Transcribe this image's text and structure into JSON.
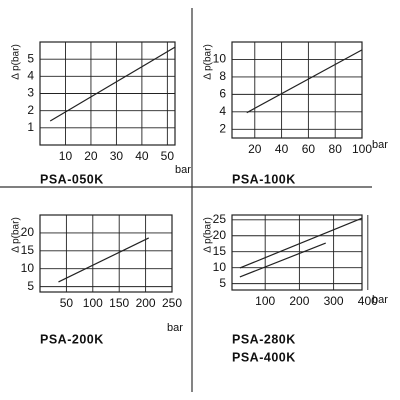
{
  "chart_data": [
    {
      "type": "line",
      "titles": [
        "PSA-050K"
      ],
      "ylabel": "Δ p(bar)",
      "xlabel": "bar",
      "xlim": [
        0,
        53
      ],
      "xticks": [
        10,
        20,
        30,
        40,
        50
      ],
      "ylim": [
        0,
        6
      ],
      "yticks": [
        1,
        2,
        3,
        4,
        5
      ],
      "grid": true,
      "series": [
        {
          "color": "#222222",
          "x": [
            4,
            53
          ],
          "values": [
            1.4,
            5.7
          ]
        }
      ]
    },
    {
      "type": "line",
      "titles": [
        "PSA-100K"
      ],
      "ylabel": "Δ p(bar)",
      "xlabel": "bar",
      "xlim": [
        3,
        100
      ],
      "xticks": [
        20,
        40,
        60,
        80,
        100
      ],
      "ylim": [
        1,
        12
      ],
      "yticks": [
        2,
        4,
        6,
        8,
        10
      ],
      "grid": true,
      "series": [
        {
          "color": "#222222",
          "x": [
            14,
            100
          ],
          "values": [
            3.9,
            11.1
          ]
        }
      ]
    },
    {
      "type": "line",
      "titles": [
        "PSA-200K"
      ],
      "ylabel": "Δ p(bar)",
      "xlabel": "bar",
      "xlim": [
        0,
        250
      ],
      "xticks": [
        50,
        100,
        150,
        200,
        250
      ],
      "ylim": [
        3.5,
        25
      ],
      "yticks": [
        5,
        10,
        15,
        20
      ],
      "grid": true,
      "series": [
        {
          "color": "#222222",
          "x": [
            35,
            206
          ],
          "values": [
            6.3,
            18.6
          ]
        }
      ]
    },
    {
      "type": "line",
      "titles": [
        "PSA-280K",
        "PSA-400K"
      ],
      "ylabel": "Δ p(bar)",
      "xlabel": "bar",
      "xlim": [
        3,
        383
      ],
      "xticks": [
        100,
        200,
        300,
        400
      ],
      "ylim": [
        3,
        26.5
      ],
      "yticks": [
        5,
        10,
        15,
        20,
        25
      ],
      "grid": true,
      "series": [
        {
          "color": "#222222",
          "x": [
            26,
            383
          ],
          "values": [
            9.9,
            25.5
          ]
        },
        {
          "color": "#222222",
          "x": [
            26,
            277
          ],
          "values": [
            7.1,
            17.7
          ]
        }
      ]
    }
  ]
}
